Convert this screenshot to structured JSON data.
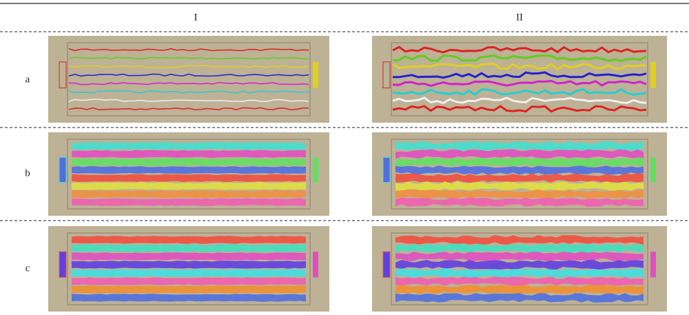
{
  "columns": [
    "I",
    "II"
  ],
  "rows": [
    "a",
    "b",
    "c"
  ]
}
